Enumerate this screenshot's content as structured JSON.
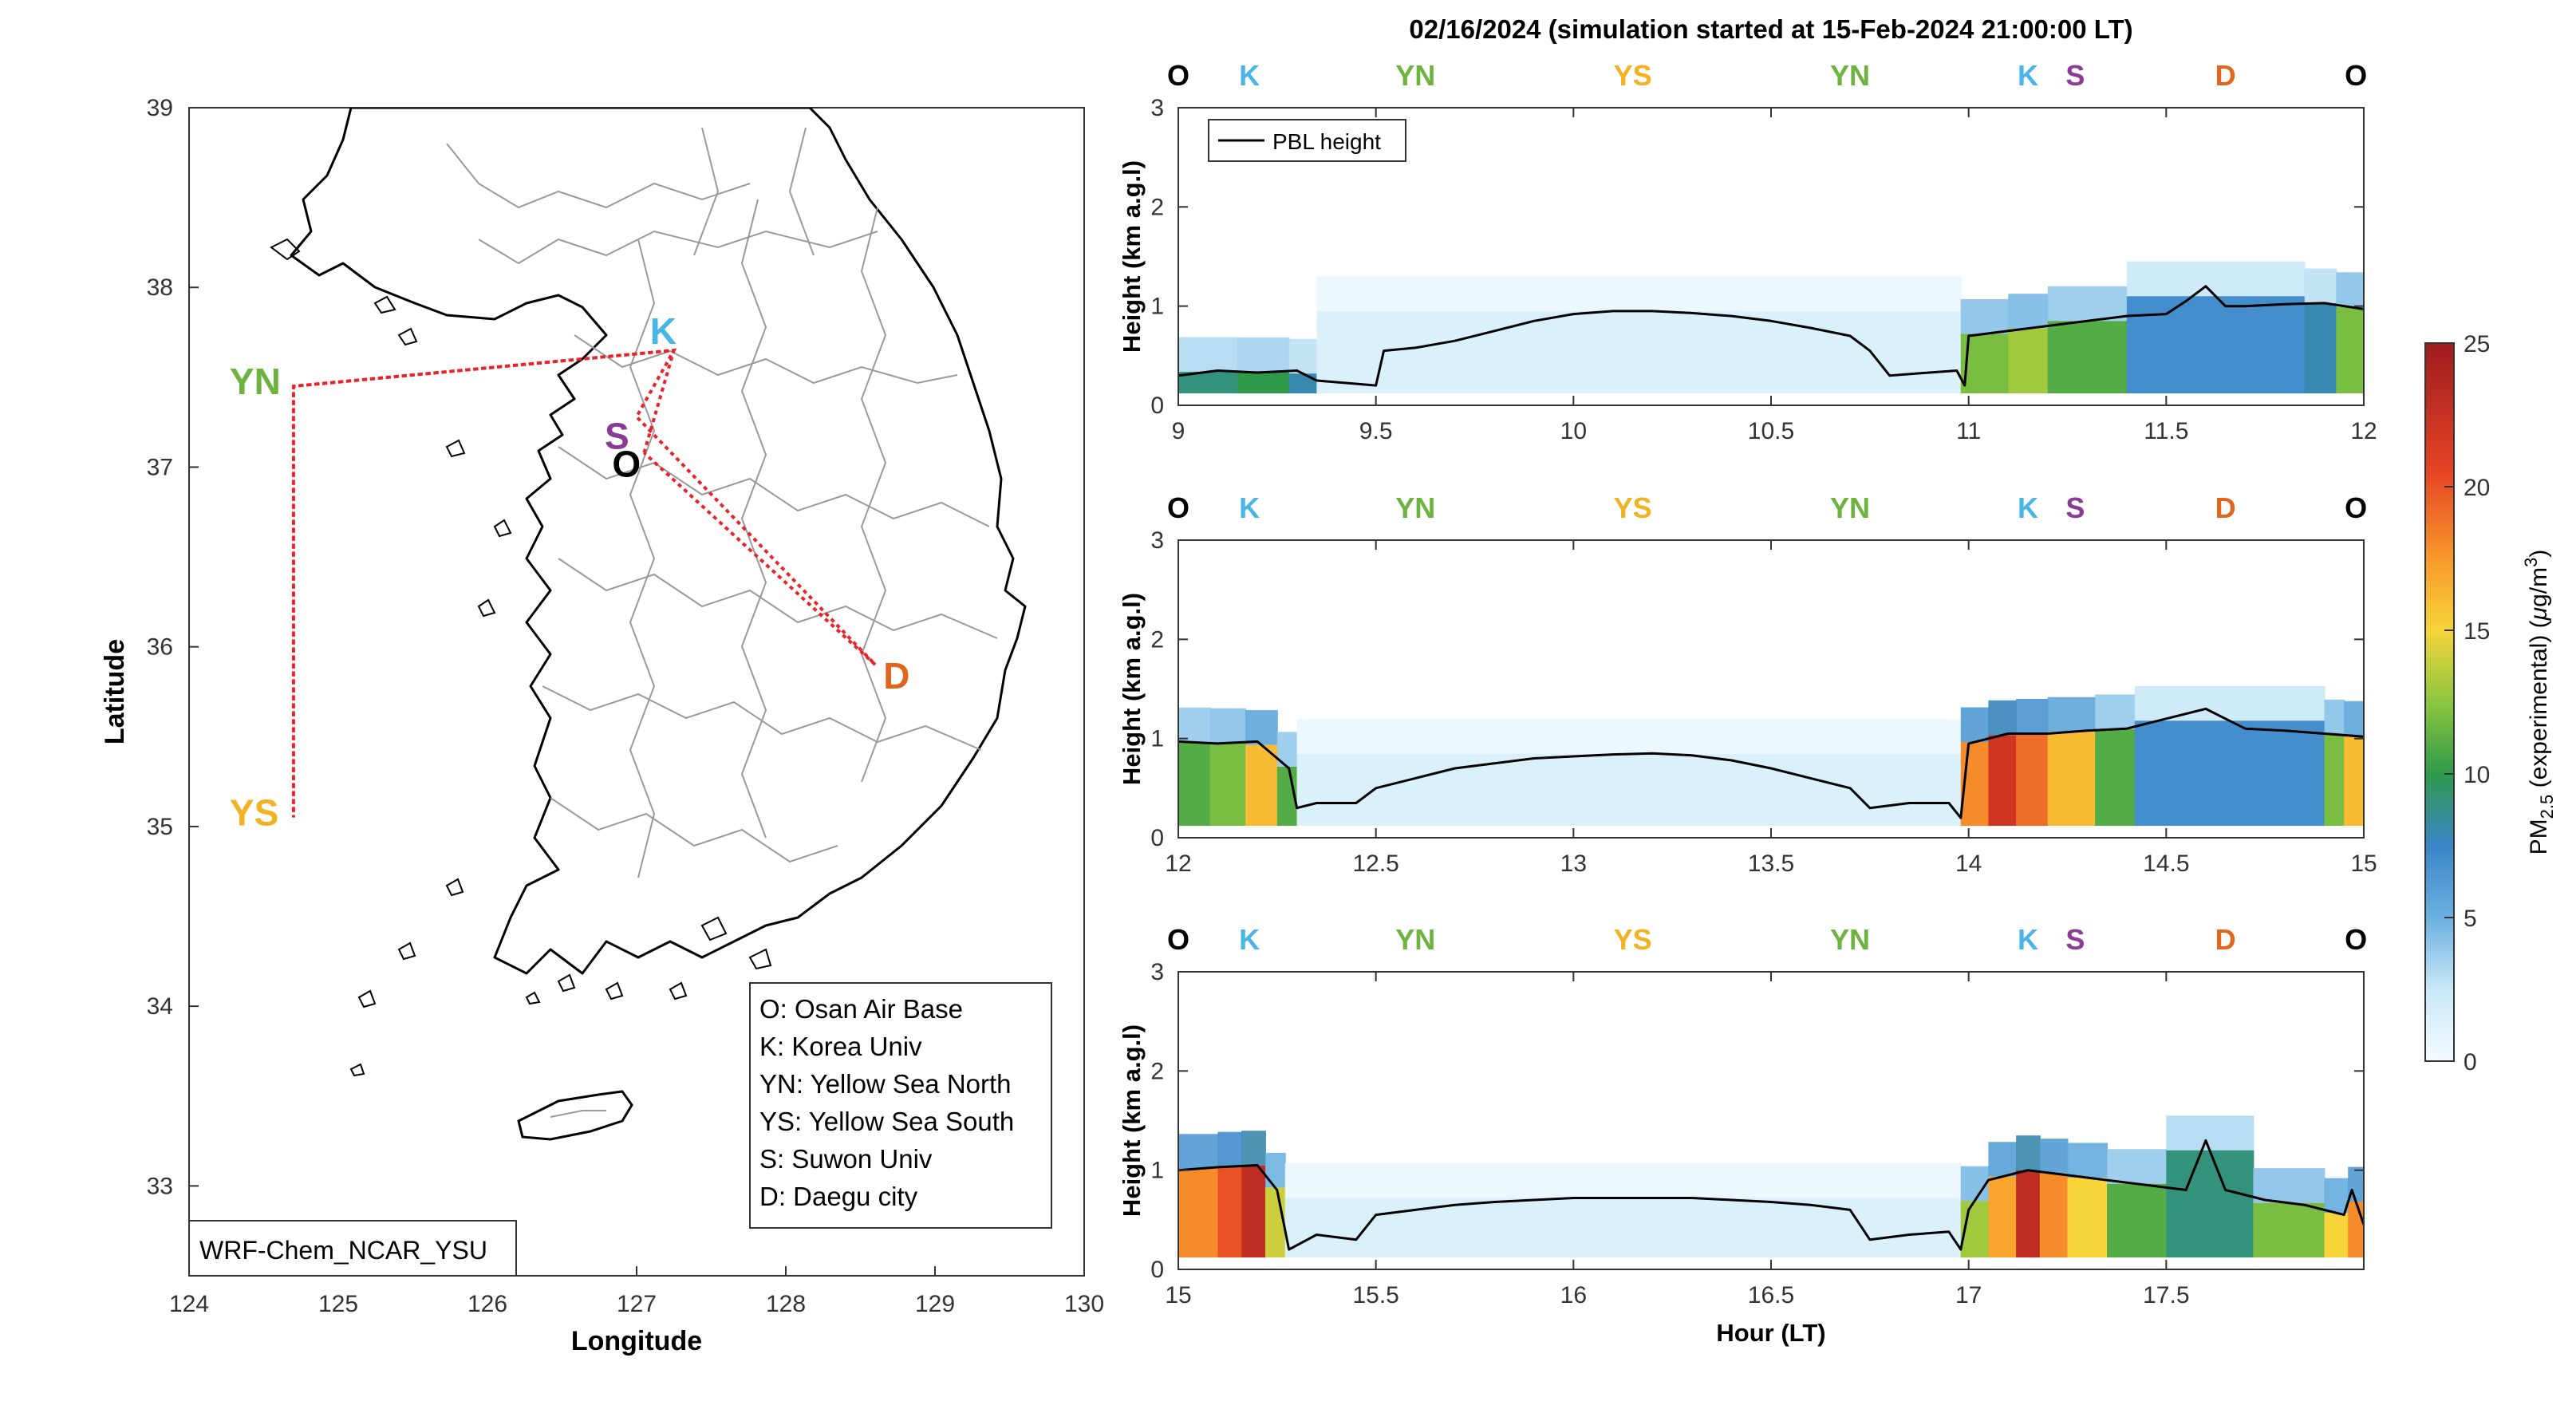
{
  "figure_title": "02/16/2024 (simulation started at 15-Feb-2024 21:00:00 LT)",
  "map": {
    "xlabel": "Longitude",
    "ylabel": "Latitude",
    "x_ticks": [
      "124",
      "125",
      "126",
      "127",
      "128",
      "129",
      "130"
    ],
    "y_ticks": [
      "39",
      "38",
      "37",
      "36",
      "35",
      "34",
      "33"
    ],
    "xlim": [
      124,
      130
    ],
    "ylim": [
      32.5,
      39
    ],
    "model_label": "WRF-Chem_NCAR_YSU",
    "route_color": "#e8232a",
    "sites": [
      {
        "code": "YN",
        "lon": 124.7,
        "lat": 37.45,
        "color": "#6db33f"
      },
      {
        "code": "YS",
        "lon": 124.7,
        "lat": 35.05,
        "color": "#f2b322"
      },
      {
        "code": "K",
        "lon": 127.25,
        "lat": 37.65,
        "color": "#48b5e6"
      },
      {
        "code": "S",
        "lon": 127.0,
        "lat": 37.28,
        "color": "#8b3a96"
      },
      {
        "code": "O",
        "lon": 127.05,
        "lat": 37.08,
        "color": "#000000"
      },
      {
        "code": "D",
        "lon": 128.6,
        "lat": 35.9,
        "color": "#e0661d"
      }
    ],
    "legend": [
      "O: Osan Air Base",
      "K: Korea Univ",
      "YN: Yellow Sea North",
      "YS: Yellow Sea South",
      "S: Suwon Univ",
      "D: Daegu city"
    ]
  },
  "panels": [
    {
      "xlim": [
        9,
        12
      ],
      "x_ticks": [
        "9",
        "9.5",
        "10",
        "10.5",
        "11",
        "11.5",
        "12"
      ],
      "ylabel": "Height (km a.g.l)",
      "y_ticks": [
        "0",
        "1",
        "2",
        "3"
      ],
      "top_labels": [
        {
          "code": "O",
          "hour": 9.0,
          "color": "#000000"
        },
        {
          "code": "K",
          "hour": 9.18,
          "color": "#48b5e6"
        },
        {
          "code": "YN",
          "hour": 9.6,
          "color": "#6db33f"
        },
        {
          "code": "YS",
          "hour": 10.15,
          "color": "#f2b322"
        },
        {
          "code": "YN",
          "hour": 10.7,
          "color": "#6db33f"
        },
        {
          "code": "K",
          "hour": 11.15,
          "color": "#48b5e6"
        },
        {
          "code": "S",
          "hour": 11.27,
          "color": "#8b3a96"
        },
        {
          "code": "D",
          "hour": 11.65,
          "color": "#e0661d"
        },
        {
          "code": "O",
          "hour": 11.98,
          "color": "#000000"
        }
      ],
      "pbl_height_km": [
        [
          9.0,
          0.3
        ],
        [
          9.1,
          0.35
        ],
        [
          9.2,
          0.33
        ],
        [
          9.3,
          0.35
        ],
        [
          9.35,
          0.25
        ],
        [
          9.5,
          0.2
        ],
        [
          9.52,
          0.55
        ],
        [
          9.6,
          0.58
        ],
        [
          9.7,
          0.65
        ],
        [
          9.8,
          0.75
        ],
        [
          9.9,
          0.85
        ],
        [
          10.0,
          0.92
        ],
        [
          10.1,
          0.95
        ],
        [
          10.2,
          0.95
        ],
        [
          10.3,
          0.93
        ],
        [
          10.4,
          0.9
        ],
        [
          10.5,
          0.85
        ],
        [
          10.6,
          0.78
        ],
        [
          10.7,
          0.7
        ],
        [
          10.75,
          0.55
        ],
        [
          10.8,
          0.3
        ],
        [
          10.9,
          0.33
        ],
        [
          10.97,
          0.35
        ],
        [
          10.99,
          0.2
        ],
        [
          11.0,
          0.7
        ],
        [
          11.1,
          0.75
        ],
        [
          11.2,
          0.8
        ],
        [
          11.3,
          0.85
        ],
        [
          11.4,
          0.9
        ],
        [
          11.5,
          0.92
        ],
        [
          11.55,
          1.05
        ],
        [
          11.6,
          1.2
        ],
        [
          11.65,
          1.0
        ],
        [
          11.7,
          1.0
        ],
        [
          11.8,
          1.02
        ],
        [
          11.9,
          1.03
        ],
        [
          12.0,
          0.97
        ]
      ],
      "pm25_columns": [
        {
          "from": 9.0,
          "to": 9.15,
          "value": 9
        },
        {
          "from": 9.15,
          "to": 9.28,
          "value": 10
        },
        {
          "from": 9.28,
          "to": 9.35,
          "value": 8
        },
        {
          "from": 9.35,
          "to": 10.98,
          "value": 1.5
        },
        {
          "from": 10.98,
          "to": 11.1,
          "value": 12
        },
        {
          "from": 11.1,
          "to": 11.2,
          "value": 13
        },
        {
          "from": 11.2,
          "to": 11.4,
          "value": 11
        },
        {
          "from": 11.4,
          "to": 11.85,
          "value": 7
        },
        {
          "from": 11.85,
          "to": 11.93,
          "value": 8
        },
        {
          "from": 11.93,
          "to": 12.0,
          "value": 12
        }
      ]
    },
    {
      "xlim": [
        12,
        15
      ],
      "x_ticks": [
        "12",
        "12.5",
        "13",
        "13.5",
        "14",
        "14.5",
        "15"
      ],
      "ylabel": "Height (km a.g.l)",
      "y_ticks": [
        "0",
        "1",
        "2",
        "3"
      ],
      "top_labels": [
        {
          "code": "O",
          "hour": 12.0,
          "color": "#000000"
        },
        {
          "code": "K",
          "hour": 12.18,
          "color": "#48b5e6"
        },
        {
          "code": "YN",
          "hour": 12.6,
          "color": "#6db33f"
        },
        {
          "code": "YS",
          "hour": 13.15,
          "color": "#f2b322"
        },
        {
          "code": "YN",
          "hour": 13.7,
          "color": "#6db33f"
        },
        {
          "code": "K",
          "hour": 14.15,
          "color": "#48b5e6"
        },
        {
          "code": "S",
          "hour": 14.27,
          "color": "#8b3a96"
        },
        {
          "code": "D",
          "hour": 14.65,
          "color": "#e0661d"
        },
        {
          "code": "O",
          "hour": 14.98,
          "color": "#000000"
        }
      ],
      "pbl_height_km": [
        [
          12.0,
          0.97
        ],
        [
          12.1,
          0.95
        ],
        [
          12.2,
          0.97
        ],
        [
          12.28,
          0.7
        ],
        [
          12.3,
          0.3
        ],
        [
          12.35,
          0.35
        ],
        [
          12.45,
          0.35
        ],
        [
          12.5,
          0.5
        ],
        [
          12.6,
          0.6
        ],
        [
          12.7,
          0.7
        ],
        [
          12.8,
          0.75
        ],
        [
          12.9,
          0.8
        ],
        [
          13.0,
          0.82
        ],
        [
          13.1,
          0.84
        ],
        [
          13.2,
          0.85
        ],
        [
          13.3,
          0.83
        ],
        [
          13.4,
          0.78
        ],
        [
          13.5,
          0.7
        ],
        [
          13.6,
          0.6
        ],
        [
          13.7,
          0.5
        ],
        [
          13.75,
          0.3
        ],
        [
          13.85,
          0.35
        ],
        [
          13.95,
          0.35
        ],
        [
          13.98,
          0.2
        ],
        [
          14.0,
          0.95
        ],
        [
          14.1,
          1.05
        ],
        [
          14.2,
          1.05
        ],
        [
          14.3,
          1.08
        ],
        [
          14.4,
          1.1
        ],
        [
          14.5,
          1.2
        ],
        [
          14.6,
          1.3
        ],
        [
          14.65,
          1.2
        ],
        [
          14.7,
          1.1
        ],
        [
          14.8,
          1.08
        ],
        [
          14.9,
          1.05
        ],
        [
          15.0,
          1.02
        ]
      ],
      "pm25_columns": [
        {
          "from": 12.0,
          "to": 12.08,
          "value": 11
        },
        {
          "from": 12.08,
          "to": 12.17,
          "value": 12
        },
        {
          "from": 12.17,
          "to": 12.25,
          "value": 16
        },
        {
          "from": 12.25,
          "to": 12.3,
          "value": 11
        },
        {
          "from": 12.3,
          "to": 13.98,
          "value": 1.5
        },
        {
          "from": 13.98,
          "to": 14.05,
          "value": 18
        },
        {
          "from": 14.05,
          "to": 14.12,
          "value": 22
        },
        {
          "from": 14.12,
          "to": 14.2,
          "value": 19
        },
        {
          "from": 14.2,
          "to": 14.32,
          "value": 16
        },
        {
          "from": 14.32,
          "to": 14.42,
          "value": 11
        },
        {
          "from": 14.42,
          "to": 14.9,
          "value": 7
        },
        {
          "from": 14.9,
          "to": 14.95,
          "value": 12
        },
        {
          "from": 14.95,
          "to": 15.0,
          "value": 16
        }
      ]
    },
    {
      "xlim": [
        15,
        18
      ],
      "x_ticks": [
        "15",
        "15.5",
        "16",
        "16.5",
        "17",
        "17.5"
      ],
      "ylabel": "Height (km a.g.l)",
      "y_ticks": [
        "0",
        "1",
        "2",
        "3"
      ],
      "xlabel": "Hour (LT)",
      "top_labels": [
        {
          "code": "O",
          "hour": 15.0,
          "color": "#000000"
        },
        {
          "code": "K",
          "hour": 15.18,
          "color": "#48b5e6"
        },
        {
          "code": "YN",
          "hour": 15.6,
          "color": "#6db33f"
        },
        {
          "code": "YS",
          "hour": 16.15,
          "color": "#f2b322"
        },
        {
          "code": "YN",
          "hour": 16.7,
          "color": "#6db33f"
        },
        {
          "code": "K",
          "hour": 17.15,
          "color": "#48b5e6"
        },
        {
          "code": "S",
          "hour": 17.27,
          "color": "#8b3a96"
        },
        {
          "code": "D",
          "hour": 17.65,
          "color": "#e0661d"
        },
        {
          "code": "O",
          "hour": 17.98,
          "color": "#000000"
        }
      ],
      "pbl_height_km": [
        [
          15.0,
          1.0
        ],
        [
          15.1,
          1.03
        ],
        [
          15.2,
          1.05
        ],
        [
          15.25,
          0.8
        ],
        [
          15.28,
          0.2
        ],
        [
          15.35,
          0.35
        ],
        [
          15.45,
          0.3
        ],
        [
          15.5,
          0.55
        ],
        [
          15.6,
          0.6
        ],
        [
          15.7,
          0.65
        ],
        [
          15.8,
          0.68
        ],
        [
          15.9,
          0.7
        ],
        [
          16.0,
          0.72
        ],
        [
          16.1,
          0.72
        ],
        [
          16.2,
          0.72
        ],
        [
          16.3,
          0.72
        ],
        [
          16.4,
          0.7
        ],
        [
          16.5,
          0.68
        ],
        [
          16.6,
          0.65
        ],
        [
          16.7,
          0.6
        ],
        [
          16.75,
          0.3
        ],
        [
          16.85,
          0.35
        ],
        [
          16.95,
          0.38
        ],
        [
          16.98,
          0.2
        ],
        [
          17.0,
          0.6
        ],
        [
          17.05,
          0.9
        ],
        [
          17.15,
          1.0
        ],
        [
          17.25,
          0.95
        ],
        [
          17.35,
          0.9
        ],
        [
          17.45,
          0.85
        ],
        [
          17.55,
          0.8
        ],
        [
          17.6,
          1.3
        ],
        [
          17.65,
          0.8
        ],
        [
          17.75,
          0.7
        ],
        [
          17.85,
          0.65
        ],
        [
          17.95,
          0.55
        ],
        [
          17.97,
          0.8
        ],
        [
          18.0,
          0.45
        ]
      ],
      "pm25_columns": [
        {
          "from": 15.0,
          "to": 15.1,
          "value": 18
        },
        {
          "from": 15.1,
          "to": 15.16,
          "value": 20
        },
        {
          "from": 15.16,
          "to": 15.22,
          "value": 23
        },
        {
          "from": 15.22,
          "to": 15.27,
          "value": 14
        },
        {
          "from": 15.27,
          "to": 16.98,
          "value": 1.5
        },
        {
          "from": 16.98,
          "to": 17.05,
          "value": 13
        },
        {
          "from": 17.05,
          "to": 17.12,
          "value": 17
        },
        {
          "from": 17.12,
          "to": 17.18,
          "value": 23
        },
        {
          "from": 17.18,
          "to": 17.25,
          "value": 18
        },
        {
          "from": 17.25,
          "to": 17.35,
          "value": 15
        },
        {
          "from": 17.35,
          "to": 17.5,
          "value": 11
        },
        {
          "from": 17.5,
          "to": 17.72,
          "value": 9
        },
        {
          "from": 17.72,
          "to": 17.9,
          "value": 12
        },
        {
          "from": 17.9,
          "to": 17.96,
          "value": 15
        },
        {
          "from": 17.96,
          "to": 18.0,
          "value": 18
        }
      ]
    }
  ],
  "series_label": "PBL height",
  "colorbar": {
    "label_main": "PM",
    "label_sub": "2.5",
    "label_rest": " (experimental) (",
    "label_mu": "μ",
    "label_unit": "g/m",
    "label_sup": "3",
    "label_close": ")",
    "ticks": [
      "0",
      "5",
      "10",
      "15",
      "20",
      "25"
    ],
    "range": [
      0,
      25
    ]
  }
}
